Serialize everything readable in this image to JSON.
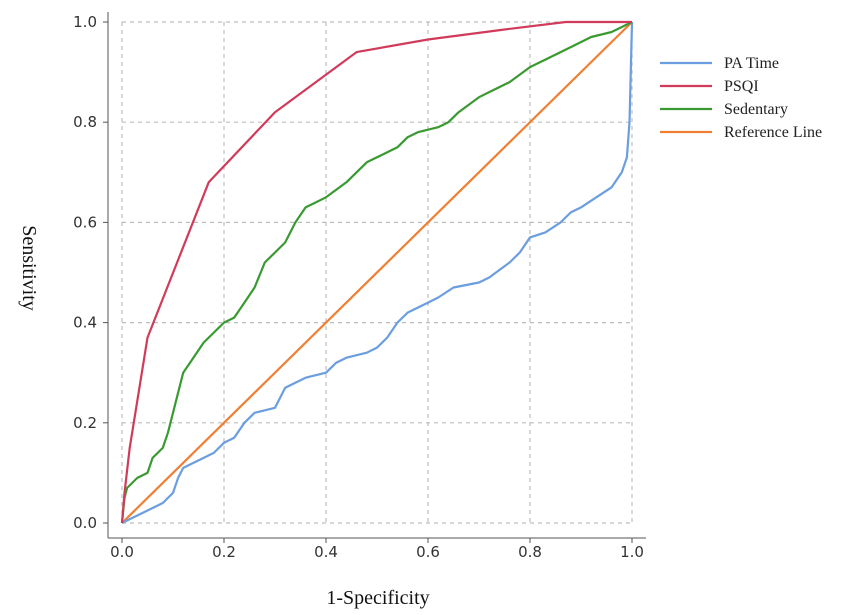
{
  "chart_data": {
    "type": "line",
    "xlabel": "1-Specificity",
    "ylabel": "Sensitivity",
    "xlim": [
      0,
      1
    ],
    "ylim": [
      0,
      1
    ],
    "grid": true,
    "legend_position": "right",
    "x_ticks": [
      "0.0",
      "0.2",
      "0.4",
      "0.6",
      "0.8",
      "1.0"
    ],
    "y_ticks": [
      "0.0",
      "0.2",
      "0.4",
      "0.6",
      "0.8",
      "1.0"
    ],
    "series": [
      {
        "name": "PA Time",
        "color": "#6a9ee0",
        "points": [
          [
            0,
            0
          ],
          [
            0.02,
            0.01
          ],
          [
            0.04,
            0.02
          ],
          [
            0.06,
            0.03
          ],
          [
            0.08,
            0.04
          ],
          [
            0.1,
            0.06
          ],
          [
            0.11,
            0.09
          ],
          [
            0.12,
            0.11
          ],
          [
            0.14,
            0.12
          ],
          [
            0.16,
            0.13
          ],
          [
            0.18,
            0.14
          ],
          [
            0.2,
            0.16
          ],
          [
            0.22,
            0.17
          ],
          [
            0.24,
            0.2
          ],
          [
            0.26,
            0.22
          ],
          [
            0.3,
            0.23
          ],
          [
            0.32,
            0.27
          ],
          [
            0.34,
            0.28
          ],
          [
            0.36,
            0.29
          ],
          [
            0.4,
            0.3
          ],
          [
            0.42,
            0.32
          ],
          [
            0.44,
            0.33
          ],
          [
            0.48,
            0.34
          ],
          [
            0.5,
            0.35
          ],
          [
            0.52,
            0.37
          ],
          [
            0.54,
            0.4
          ],
          [
            0.56,
            0.42
          ],
          [
            0.6,
            0.44
          ],
          [
            0.62,
            0.45
          ],
          [
            0.65,
            0.47
          ],
          [
            0.7,
            0.48
          ],
          [
            0.72,
            0.49
          ],
          [
            0.76,
            0.52
          ],
          [
            0.78,
            0.54
          ],
          [
            0.8,
            0.57
          ],
          [
            0.83,
            0.58
          ],
          [
            0.86,
            0.6
          ],
          [
            0.88,
            0.62
          ],
          [
            0.9,
            0.63
          ],
          [
            0.93,
            0.65
          ],
          [
            0.96,
            0.67
          ],
          [
            0.98,
            0.7
          ],
          [
            0.99,
            0.73
          ],
          [
            0.995,
            0.8
          ],
          [
            1.0,
            1.0
          ]
        ]
      },
      {
        "name": "PSQI",
        "color": "#d13b5a",
        "points": [
          [
            0,
            0
          ],
          [
            0.005,
            0.06
          ],
          [
            0.015,
            0.15
          ],
          [
            0.05,
            0.37
          ],
          [
            0.17,
            0.68
          ],
          [
            0.3,
            0.82
          ],
          [
            0.46,
            0.94
          ],
          [
            0.6,
            0.965
          ],
          [
            0.75,
            0.985
          ],
          [
            0.87,
            1.0
          ],
          [
            1.0,
            1.0
          ]
        ]
      },
      {
        "name": "Sedentary",
        "color": "#3a9a32",
        "points": [
          [
            0,
            0
          ],
          [
            0.005,
            0.05
          ],
          [
            0.01,
            0.07
          ],
          [
            0.03,
            0.09
          ],
          [
            0.05,
            0.1
          ],
          [
            0.06,
            0.13
          ],
          [
            0.08,
            0.15
          ],
          [
            0.09,
            0.18
          ],
          [
            0.1,
            0.22
          ],
          [
            0.11,
            0.26
          ],
          [
            0.12,
            0.3
          ],
          [
            0.14,
            0.33
          ],
          [
            0.16,
            0.36
          ],
          [
            0.18,
            0.38
          ],
          [
            0.2,
            0.4
          ],
          [
            0.22,
            0.41
          ],
          [
            0.24,
            0.44
          ],
          [
            0.26,
            0.47
          ],
          [
            0.28,
            0.52
          ],
          [
            0.3,
            0.54
          ],
          [
            0.32,
            0.56
          ],
          [
            0.34,
            0.6
          ],
          [
            0.36,
            0.63
          ],
          [
            0.38,
            0.64
          ],
          [
            0.4,
            0.65
          ],
          [
            0.44,
            0.68
          ],
          [
            0.46,
            0.7
          ],
          [
            0.48,
            0.72
          ],
          [
            0.5,
            0.73
          ],
          [
            0.54,
            0.75
          ],
          [
            0.56,
            0.77
          ],
          [
            0.58,
            0.78
          ],
          [
            0.62,
            0.79
          ],
          [
            0.64,
            0.8
          ],
          [
            0.66,
            0.82
          ],
          [
            0.7,
            0.85
          ],
          [
            0.72,
            0.86
          ],
          [
            0.76,
            0.88
          ],
          [
            0.8,
            0.91
          ],
          [
            0.84,
            0.93
          ],
          [
            0.88,
            0.95
          ],
          [
            0.92,
            0.97
          ],
          [
            0.96,
            0.98
          ],
          [
            1.0,
            1.0
          ]
        ]
      },
      {
        "name": "Reference Line",
        "color": "#f07f33",
        "points": [
          [
            0,
            0
          ],
          [
            1,
            1
          ]
        ]
      }
    ]
  }
}
